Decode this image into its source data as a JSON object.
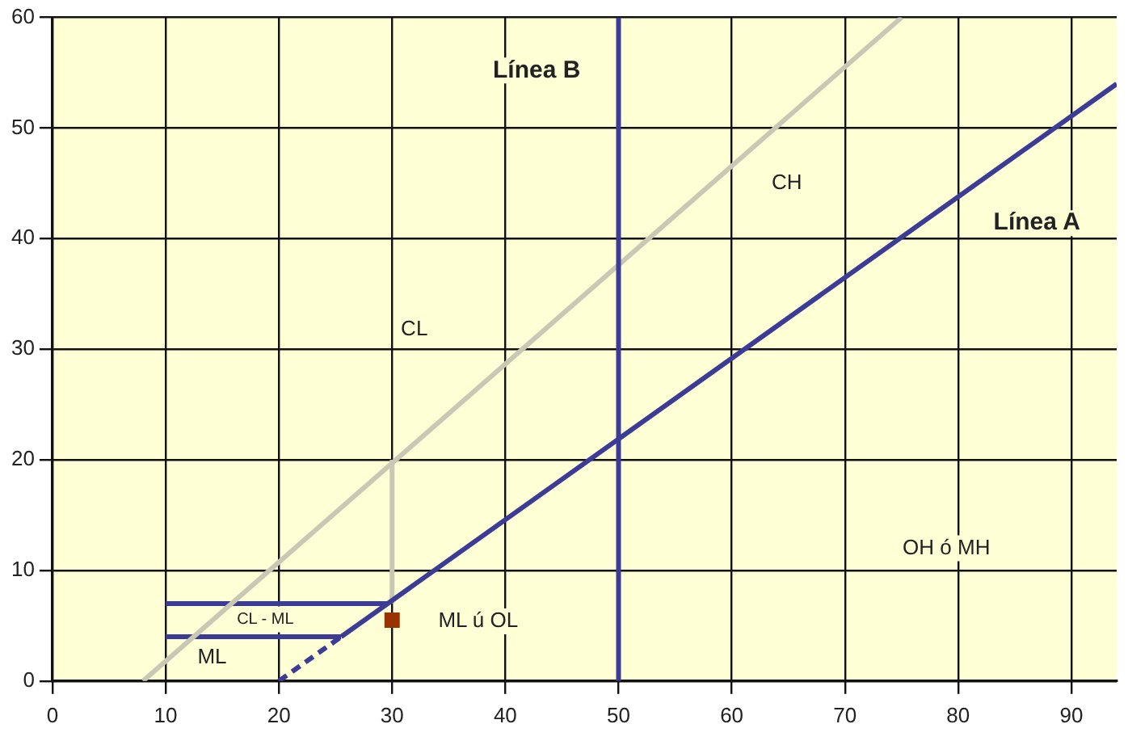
{
  "chart_data": {
    "type": "line",
    "xlim": [
      0,
      94
    ],
    "ylim": [
      0,
      60
    ],
    "xticks": [
      0,
      10,
      20,
      30,
      40,
      50,
      60,
      70,
      80,
      90
    ],
    "yticks": [
      0,
      10,
      20,
      30,
      40,
      50,
      60
    ],
    "grid": true,
    "legend": false,
    "marker": "none",
    "series": [
      {
        "name": "Línea A",
        "color": "#3c3c96",
        "x": [
          25.5,
          94
        ],
        "values": [
          4,
          54
        ],
        "line_style": "solid"
      },
      {
        "color": "#3c3c96",
        "x": [
          20,
          25.5
        ],
        "values": [
          0,
          4
        ],
        "line_style": "dashed"
      },
      {
        "name": "Línea B",
        "color": "#3c3c96",
        "x": [
          50,
          50
        ],
        "values": [
          0,
          60
        ],
        "line_style": "solid"
      },
      {
        "color": "#c8c8b4",
        "x": [
          8,
          75
        ],
        "values": [
          0,
          60
        ],
        "line_style": "solid"
      },
      {
        "color": "#c8c8b4",
        "x": [
          30,
          30
        ],
        "values": [
          7,
          20
        ],
        "line_style": "solid"
      },
      {
        "color": "#3c3c96",
        "x": [
          10,
          29.6
        ],
        "values": [
          7,
          7
        ],
        "line_style": "solid"
      },
      {
        "color": "#3c3c96",
        "x": [
          10,
          25.5
        ],
        "values": [
          4,
          4
        ],
        "line_style": "solid"
      },
      {
        "type": "scatter",
        "color": "#993300",
        "x": [
          30
        ],
        "values": [
          5.5
        ],
        "marker": "square"
      }
    ],
    "annotations": [
      "CH",
      "CL",
      "OH ó MH",
      "ML ú OL",
      "CL - ML",
      "ML"
    ]
  }
}
